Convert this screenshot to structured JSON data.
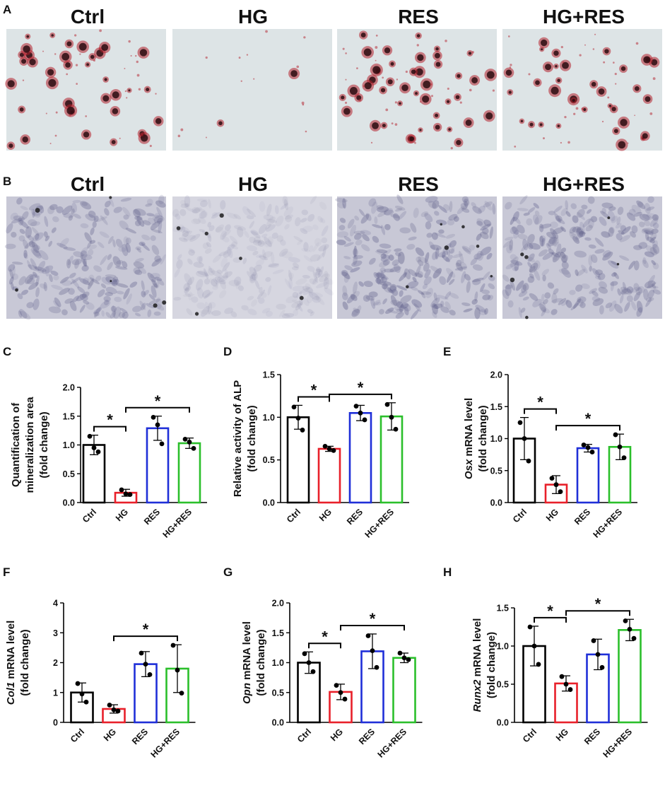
{
  "figure": {
    "panel_labels": [
      "A",
      "B",
      "C",
      "D",
      "E",
      "F",
      "G",
      "H"
    ]
  },
  "micrographs": {
    "row_a": {
      "stain": "mineralized-nodules",
      "headers": [
        "Ctrl",
        "HG",
        "RES",
        "HG+RES"
      ],
      "background": "#dde4e6",
      "nodule_color": "#b3202c",
      "nodule_dark": "#2a0c10",
      "nodule_density": [
        0.75,
        0.05,
        0.9,
        0.7
      ]
    },
    "row_b": {
      "stain": "alp-cells",
      "headers": [
        "Ctrl",
        "HG",
        "RES",
        "HG+RES"
      ],
      "background": "#c8c8d6",
      "cell_color": "#6a6a92",
      "stain_intensity": [
        0.75,
        0.25,
        0.85,
        0.8
      ]
    }
  },
  "colors": {
    "Ctrl": "#000000",
    "HG": "#e8202a",
    "RES": "#1f2fd8",
    "HG+RES": "#2bbf2b"
  },
  "chart_data": [
    {
      "panel": "C",
      "type": "bar",
      "categories": [
        "Ctrl",
        "HG",
        "RES",
        "HG+RES"
      ],
      "values": [
        1.0,
        0.17,
        1.29,
        1.03
      ],
      "errors": [
        0.17,
        0.06,
        0.21,
        0.09
      ],
      "points": [
        [
          1.15,
          0.95,
          0.88
        ],
        [
          0.22,
          0.15,
          0.14
        ],
        [
          1.48,
          1.35,
          1.02
        ],
        [
          1.1,
          1.05,
          0.94
        ]
      ],
      "ylabel_lines": [
        "Quantification of",
        "mineralization area",
        "(fold change)"
      ],
      "ylabel_italic": "",
      "ylim": [
        0,
        2.0
      ],
      "yticks": [
        "0.0",
        "0.5",
        "1.0",
        "1.5",
        "2.0"
      ],
      "significance": [
        {
          "from": 0,
          "to": 1,
          "label": "*"
        },
        {
          "from": 1,
          "to": 3,
          "label": "*"
        }
      ]
    },
    {
      "panel": "D",
      "type": "bar",
      "categories": [
        "Ctrl",
        "HG",
        "RES",
        "HG+RES"
      ],
      "values": [
        1.0,
        0.63,
        1.05,
        1.01
      ],
      "errors": [
        0.14,
        0.03,
        0.09,
        0.16
      ],
      "points": [
        [
          1.12,
          0.99,
          0.85
        ],
        [
          0.66,
          0.63,
          0.61
        ],
        [
          1.13,
          1.05,
          0.97
        ],
        [
          1.15,
          1.0,
          0.86
        ]
      ],
      "ylabel_lines": [
        "Relative activity of ALP",
        "(fold change)"
      ],
      "ylabel_italic": "",
      "ylim": [
        0,
        1.5
      ],
      "yticks": [
        "0.0",
        "0.5",
        "1.0",
        "1.5"
      ],
      "significance": [
        {
          "from": 0,
          "to": 1,
          "label": "*"
        },
        {
          "from": 1,
          "to": 3,
          "label": "*"
        }
      ]
    },
    {
      "panel": "E",
      "type": "bar",
      "categories": [
        "Ctrl",
        "HG",
        "RES",
        "HG+RES"
      ],
      "values": [
        1.0,
        0.28,
        0.85,
        0.87
      ],
      "errors": [
        0.33,
        0.14,
        0.06,
        0.2
      ],
      "points": [
        [
          1.25,
          1.0,
          0.65
        ],
        [
          0.38,
          0.28,
          0.17
        ],
        [
          0.9,
          0.86,
          0.79
        ],
        [
          1.06,
          0.87,
          0.7
        ]
      ],
      "ylabel_lines": [
        "Osx mRNA level",
        "(fold change)"
      ],
      "ylabel_italic": "Osx",
      "ylim": [
        0,
        2.0
      ],
      "yticks": [
        "0.0",
        "0.5",
        "1.0",
        "1.5",
        "2.0"
      ],
      "significance": [
        {
          "from": 0,
          "to": 1,
          "label": "*"
        },
        {
          "from": 1,
          "to": 3,
          "label": "*"
        }
      ]
    },
    {
      "panel": "F",
      "type": "bar",
      "categories": [
        "Ctrl",
        "HG",
        "RES",
        "HG+RES"
      ],
      "values": [
        1.0,
        0.45,
        1.95,
        1.8
      ],
      "errors": [
        0.32,
        0.14,
        0.42,
        0.8
      ],
      "points": [
        [
          1.3,
          0.95,
          0.68
        ],
        [
          0.58,
          0.42,
          0.38
        ],
        [
          2.32,
          1.95,
          1.6
        ],
        [
          2.58,
          1.75,
          0.98
        ]
      ],
      "ylabel_lines": [
        "Col1 mRNA level",
        "(fold change)"
      ],
      "ylabel_italic": "Col1",
      "ylim": [
        0,
        4
      ],
      "yticks": [
        "0",
        "1",
        "2",
        "3",
        "4"
      ],
      "significance": [
        {
          "from": 1,
          "to": 3,
          "label": "*"
        }
      ]
    },
    {
      "panel": "G",
      "type": "bar",
      "categories": [
        "Ctrl",
        "HG",
        "RES",
        "HG+RES"
      ],
      "values": [
        1.0,
        0.51,
        1.19,
        1.08
      ],
      "errors": [
        0.18,
        0.13,
        0.29,
        0.08
      ],
      "points": [
        [
          1.15,
          1.0,
          0.85
        ],
        [
          0.62,
          0.5,
          0.39
        ],
        [
          1.45,
          1.2,
          0.92
        ],
        [
          1.16,
          1.08,
          1.05
        ]
      ],
      "ylabel_lines": [
        "Opn mRNA level",
        "(fold change)"
      ],
      "ylabel_italic": "Opn",
      "ylim": [
        0,
        2.0
      ],
      "yticks": [
        "0.0",
        "0.5",
        "1.0",
        "1.5",
        "2.0"
      ],
      "significance": [
        {
          "from": 0,
          "to": 1,
          "label": "*"
        },
        {
          "from": 1,
          "to": 3,
          "label": "*"
        }
      ]
    },
    {
      "panel": "H",
      "type": "bar",
      "categories": [
        "Ctrl",
        "HG",
        "RES",
        "HG+RES"
      ],
      "values": [
        1.0,
        0.51,
        0.89,
        1.21
      ],
      "errors": [
        0.26,
        0.1,
        0.2,
        0.14
      ],
      "points": [
        [
          1.25,
          1.0,
          0.76
        ],
        [
          0.6,
          0.5,
          0.43
        ],
        [
          1.07,
          0.89,
          0.72
        ],
        [
          1.33,
          1.22,
          1.1
        ]
      ],
      "ylabel_lines": [
        "Runx2 mRNA level",
        "(fold change)"
      ],
      "ylabel_italic": "Runx2",
      "ylim": [
        0,
        1.5
      ],
      "yticks": [
        "0.0",
        "0.5",
        "1.0",
        "1.5"
      ],
      "significance": [
        {
          "from": 0,
          "to": 1,
          "label": "*"
        },
        {
          "from": 1,
          "to": 3,
          "label": "*"
        }
      ]
    }
  ]
}
